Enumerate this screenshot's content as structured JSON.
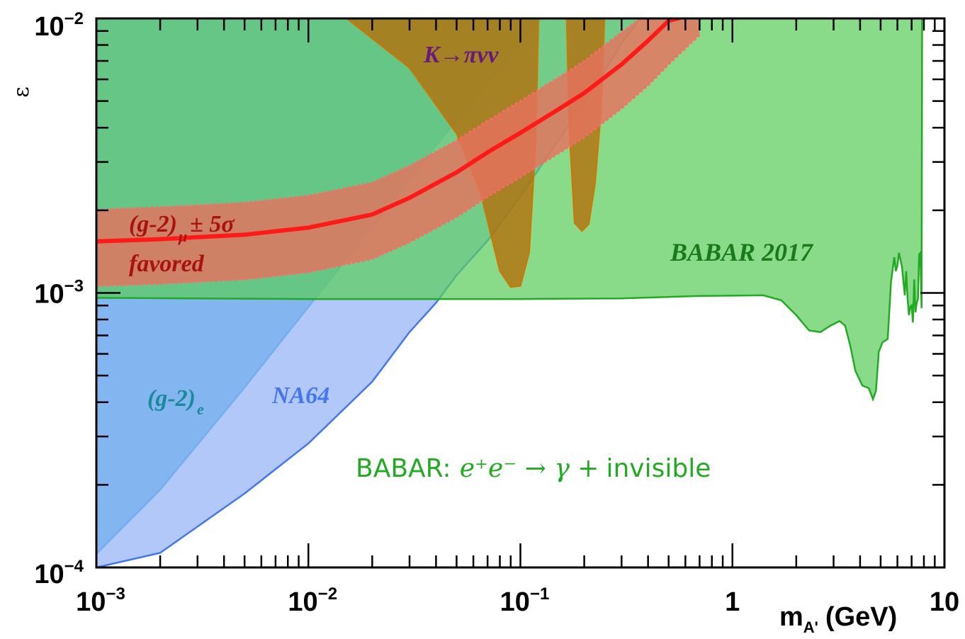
{
  "chart_data": {
    "type": "area",
    "x_scale": "log",
    "y_scale": "log",
    "xlim": [
      0.001,
      10
    ],
    "ylim": [
      0.0001,
      0.01
    ],
    "xlabel_main": "m",
    "xlabel_sub": "A'",
    "xlabel_unit": "(GeV)",
    "ylabel": "ε",
    "x_ticks": [
      {
        "value": 0.001,
        "base": "10",
        "exp": "−3"
      },
      {
        "value": 0.01,
        "base": "10",
        "exp": "−2"
      },
      {
        "value": 0.1,
        "base": "10",
        "exp": "−1"
      },
      {
        "value": 1,
        "base": "1",
        "exp": ""
      },
      {
        "value": 10,
        "base": "10",
        "exp": ""
      }
    ],
    "y_ticks": [
      {
        "value": 0.0001,
        "base": "10",
        "exp": "−4"
      },
      {
        "value": 0.001,
        "base": "10",
        "exp": "−3"
      },
      {
        "value": 0.01,
        "base": "10",
        "exp": "−2"
      }
    ],
    "series": [
      {
        "key": "g2e",
        "color": "#22a4dc",
        "opacity": 0.75,
        "edge": "#22a4dc",
        "lower_edge": [
          [
            0.001,
            0.000112
          ],
          [
            0.002,
            0.000192
          ],
          [
            0.005,
            0.000453
          ],
          [
            0.01,
            0.00089
          ],
          [
            0.02,
            0.00174
          ],
          [
            0.04,
            0.00345
          ],
          [
            0.07,
            0.0058
          ],
          [
            0.1,
            0.0082
          ],
          [
            0.15,
            0.0115
          ]
        ]
      },
      {
        "key": "na64",
        "color": "#93b3f5",
        "opacity": 0.72,
        "edge": "#4477ee",
        "lower_edge": [
          [
            0.001,
            0.0001
          ],
          [
            0.002,
            0.000113
          ],
          [
            0.005,
            0.000186
          ],
          [
            0.01,
            0.000283
          ],
          [
            0.02,
            0.000475
          ],
          [
            0.03,
            0.00072
          ],
          [
            0.04,
            0.00092
          ],
          [
            0.05,
            0.00116
          ],
          [
            0.07,
            0.00155
          ],
          [
            0.1,
            0.00225
          ],
          [
            0.15,
            0.00357
          ],
          [
            0.2,
            0.0049
          ],
          [
            0.3,
            0.0081
          ],
          [
            0.4,
            0.011
          ]
        ]
      },
      {
        "key": "babar",
        "name": "BABAR 2017",
        "color": "#5ccd5c",
        "opacity": 0.72,
        "edge": "#22aa22",
        "lower_edge": [
          [
            0.001,
            0.00096
          ],
          [
            0.01,
            0.00095
          ],
          [
            0.1,
            0.00095
          ],
          [
            0.3,
            0.000955
          ],
          [
            0.7,
            0.000975
          ],
          [
            1.4,
            0.00098
          ],
          [
            1.7,
            0.00094
          ],
          [
            2.0,
            0.00083
          ],
          [
            2.3,
            0.00073
          ],
          [
            2.6,
            0.00072
          ],
          [
            2.9,
            0.00076
          ],
          [
            3.2,
            0.00079
          ],
          [
            3.4,
            0.00076
          ],
          [
            3.6,
            0.00064
          ],
          [
            3.8,
            0.00052
          ],
          [
            4.1,
            0.00046
          ],
          [
            4.4,
            0.00045
          ],
          [
            4.6,
            0.00041
          ],
          [
            4.75,
            0.00044
          ],
          [
            4.9,
            0.00061
          ],
          [
            5.1,
            0.00066
          ],
          [
            5.4,
            0.00068
          ],
          [
            5.6,
            0.0011
          ],
          [
            5.8,
            0.00135
          ],
          [
            5.9,
            0.0012
          ],
          [
            6.0,
            0.00126
          ],
          [
            6.1,
            0.0014
          ],
          [
            6.3,
            0.00125
          ],
          [
            6.5,
            0.00098
          ],
          [
            6.6,
            0.0012
          ],
          [
            6.7,
            0.00095
          ],
          [
            6.8,
            0.00083
          ],
          [
            6.9,
            0.00089
          ],
          [
            7.0,
            0.0009
          ],
          [
            7.1,
            0.00078
          ],
          [
            7.2,
            0.00112
          ],
          [
            7.3,
            0.00085
          ],
          [
            7.4,
            0.00092
          ],
          [
            7.5,
            0.00095
          ],
          [
            7.6,
            0.00138
          ],
          [
            7.7,
            0.0014
          ],
          [
            7.8,
            0.00088
          ],
          [
            7.85,
            0.0105
          ]
        ]
      },
      {
        "key": "kpinunu",
        "color": "#b66d08",
        "opacity": 0.78,
        "edge": "#cc7700",
        "polygon": [
          [
            0.014,
            0.0105
          ],
          [
            0.03,
            0.0066
          ],
          [
            0.05,
            0.0038
          ],
          [
            0.065,
            0.0023
          ],
          [
            0.08,
            0.0012
          ],
          [
            0.09,
            0.00105
          ],
          [
            0.1,
            0.00106
          ],
          [
            0.11,
            0.0014
          ],
          [
            0.118,
            0.0035
          ],
          [
            0.122,
            0.0105
          ],
          [
            0.165,
            0.0105
          ],
          [
            0.17,
            0.0039
          ],
          [
            0.18,
            0.0018
          ],
          [
            0.195,
            0.00168
          ],
          [
            0.21,
            0.00178
          ],
          [
            0.225,
            0.0025
          ],
          [
            0.24,
            0.0046
          ],
          [
            0.25,
            0.0105
          ]
        ]
      }
    ],
    "band": {
      "color": "#e7725e",
      "opacity": 0.82,
      "edge": "#ff6a6a",
      "central_color": "#ff1a1a",
      "x": [
        0.001,
        0.002,
        0.005,
        0.01,
        0.02,
        0.03,
        0.05,
        0.07,
        0.1,
        0.15,
        0.2,
        0.3,
        0.4,
        0.5,
        0.7
      ],
      "central": [
        0.00154,
        0.00157,
        0.00163,
        0.00173,
        0.00193,
        0.00222,
        0.00275,
        0.00325,
        0.00383,
        0.00465,
        0.00535,
        0.0068,
        0.0083,
        0.0098,
        0.0105
      ],
      "upper": [
        0.00201,
        0.00205,
        0.00213,
        0.00226,
        0.00252,
        0.0029,
        0.00359,
        0.00424,
        0.005,
        0.00607,
        0.00699,
        0.0089,
        0.0105,
        0.0105,
        0.0105
      ],
      "lower": [
        0.00106,
        0.00108,
        0.00112,
        0.00119,
        0.00133,
        0.00153,
        0.00189,
        0.00224,
        0.00264,
        0.00321,
        0.00369,
        0.0047,
        0.0057,
        0.0068,
        0.0087
      ]
    },
    "annotations": {
      "kpinunu": {
        "text": "K→πνν",
        "color": "#6a1a7a"
      },
      "g2mu_line1": {
        "text": "(g-2)",
        "sub": "μ",
        "rest": "± 5σ",
        "color": "#aa1111"
      },
      "g2mu_line2": {
        "text": "favored",
        "color": "#aa1111"
      },
      "babar2017": {
        "text": "BABAR 2017",
        "color": "#1a7a1a"
      },
      "g2e": {
        "text": "(g-2)",
        "sub": "e",
        "color": "#1a8a9a"
      },
      "na64": {
        "text": "NA64",
        "color": "#4477ee"
      },
      "babar_title": {
        "prefix": "BABAR:",
        "process": "e⁺e⁻ → γ +",
        "suffix": "invisible",
        "color": "#22aa22"
      }
    }
  }
}
